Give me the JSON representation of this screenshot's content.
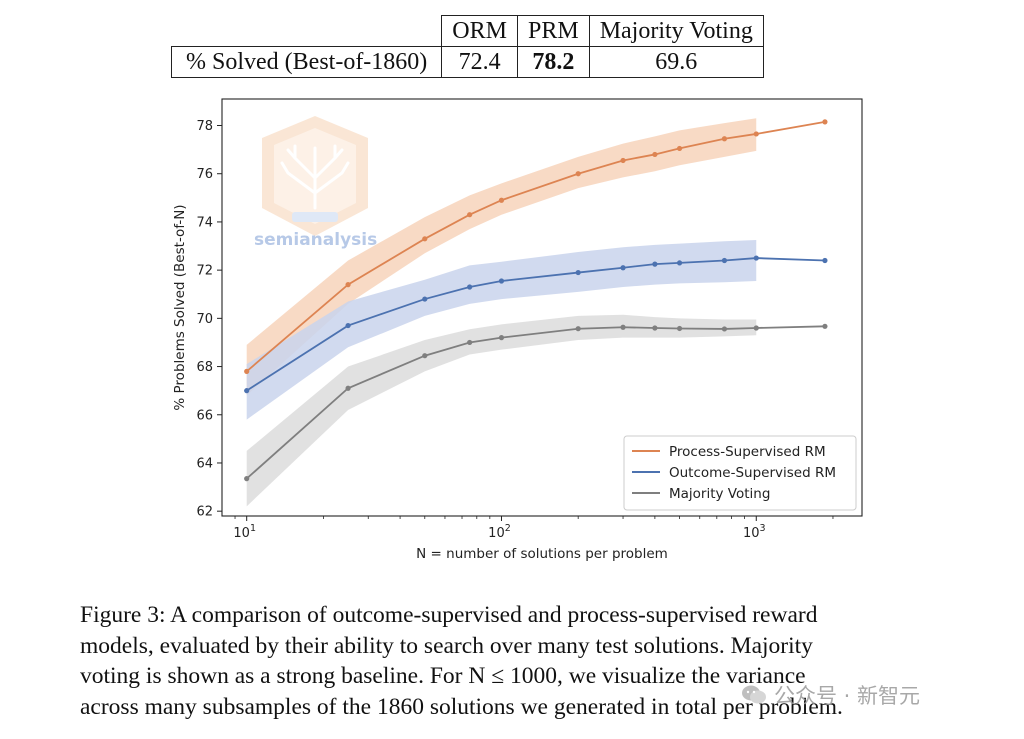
{
  "table": {
    "headers": [
      "ORM",
      "PRM",
      "Majority Voting"
    ],
    "row_label": "% Solved (Best-of-1860)",
    "values": [
      "72.4",
      "78.2",
      "69.6"
    ],
    "best_index": 1
  },
  "chart_data": {
    "type": "line",
    "x_scale": "log",
    "xlabel": "N = number of solutions per problem",
    "ylabel": "% Problems Solved (Best-of-N)",
    "xlim": [
      8,
      2600
    ],
    "ylim": [
      61.8,
      79.1
    ],
    "y_ticks": [
      62,
      64,
      66,
      68,
      70,
      72,
      74,
      76,
      78
    ],
    "x_ticks": [
      {
        "value": 10,
        "base": "10",
        "exp": "1"
      },
      {
        "value": 100,
        "base": "10",
        "exp": "2"
      },
      {
        "value": 1000,
        "base": "10",
        "exp": "3"
      }
    ],
    "legend_position": "lower right",
    "series": [
      {
        "name": "Process-Supervised RM",
        "color": "#dd8452",
        "band_color": "#f7d4bb",
        "x": [
          10,
          25,
          50,
          75,
          100,
          200,
          300,
          400,
          500,
          750,
          1000,
          1860
        ],
        "y": [
          67.8,
          71.4,
          73.3,
          74.3,
          74.9,
          76.0,
          76.55,
          76.8,
          77.05,
          77.45,
          77.65,
          78.15
        ],
        "band_low": [
          66.8,
          70.6,
          72.7,
          73.7,
          74.3,
          75.4,
          75.85,
          76.1,
          76.35,
          76.7,
          76.95
        ],
        "band_high": [
          68.9,
          72.4,
          74.2,
          75.1,
          75.6,
          76.7,
          77.25,
          77.55,
          77.8,
          78.1,
          78.3
        ]
      },
      {
        "name": "Outcome-Supervised RM",
        "color": "#4c72b0",
        "band_color": "#c9d4ec",
        "x": [
          10,
          25,
          50,
          75,
          100,
          200,
          300,
          400,
          500,
          750,
          1000,
          1860
        ],
        "y": [
          67.0,
          69.7,
          70.8,
          71.3,
          71.55,
          71.9,
          72.1,
          72.25,
          72.3,
          72.4,
          72.5,
          72.4
        ],
        "band_low": [
          65.8,
          68.8,
          70.1,
          70.6,
          70.8,
          71.1,
          71.3,
          71.4,
          71.45,
          71.5,
          71.55
        ],
        "band_high": [
          68.1,
          70.7,
          71.6,
          72.2,
          72.35,
          72.75,
          72.95,
          73.05,
          73.1,
          73.2,
          73.25
        ]
      },
      {
        "name": "Majority Voting",
        "color": "#7f7f7f",
        "band_color": "#dcdcdc",
        "x": [
          10,
          25,
          50,
          75,
          100,
          200,
          300,
          400,
          500,
          750,
          1000,
          1860
        ],
        "y": [
          63.35,
          67.1,
          68.45,
          69.0,
          69.2,
          69.57,
          69.63,
          69.6,
          69.58,
          69.56,
          69.6,
          69.67
        ],
        "band_low": [
          62.2,
          66.2,
          67.8,
          68.5,
          68.7,
          69.1,
          69.2,
          69.2,
          69.2,
          69.25,
          69.3
        ],
        "band_high": [
          64.5,
          68.0,
          69.1,
          69.55,
          69.75,
          70.1,
          70.15,
          70.05,
          70.0,
          69.95,
          69.95
        ]
      }
    ]
  },
  "caption": {
    "lines": [
      "Figure 3: A comparison of outcome-supervised and process-supervised reward",
      "models, evaluated by their ability to search over many test solutions. Majority",
      "voting is shown as a strong baseline. For N ≤ 1000, we visualize the variance",
      "across many subsamples of the 1860 solutions we generated in total per problem."
    ]
  },
  "watermarks": {
    "logo_text": "semianalysis",
    "bottom_text": "公众号 · 新智元"
  }
}
